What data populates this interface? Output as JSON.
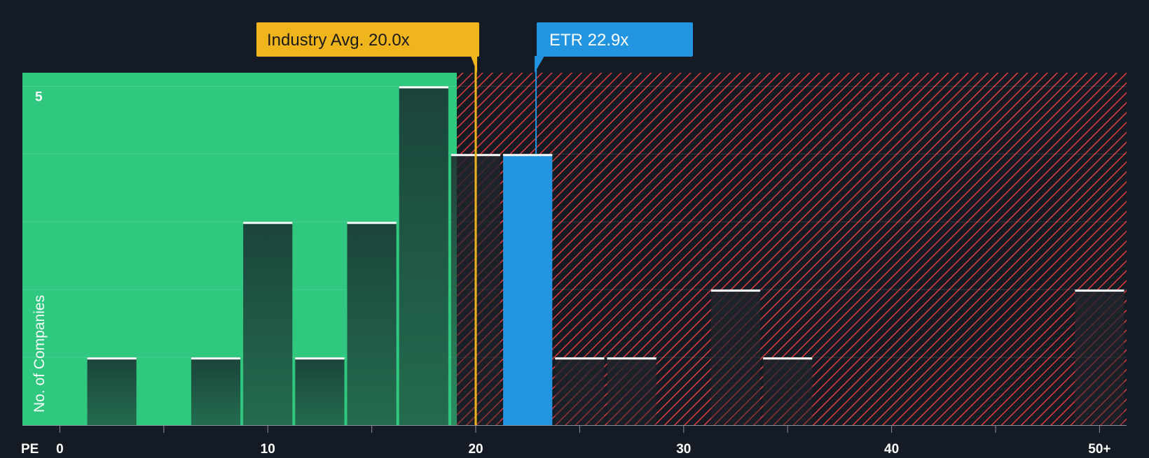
{
  "colors": {
    "background": "#151b24",
    "undervalued_zone": "#2fc87e",
    "overvalued_hatch": "#e03c3c",
    "bar_dark": "#1e4a3f",
    "bar_highlight": "#2394e0",
    "industry_marker": "#f0b41c",
    "cap_line": "#ffffff"
  },
  "labels": {
    "industry": "Industry Avg. 20.0x",
    "company": "ETR 22.9x"
  },
  "chart_data": {
    "type": "bar",
    "title": "",
    "xlabel": "PE",
    "ylabel": "No. of Companies",
    "x_ticks": [
      {
        "value": 0,
        "label": "0"
      },
      {
        "value": 10,
        "label": "10"
      },
      {
        "value": 20,
        "label": "20"
      },
      {
        "value": 30,
        "label": "30"
      },
      {
        "value": 40,
        "label": "40"
      },
      {
        "value": 50,
        "label": "50+"
      }
    ],
    "y_ticks": [
      {
        "value": 5,
        "label": "5"
      }
    ],
    "xlim": [
      -1.8,
      51.3
    ],
    "ylim": [
      0,
      5.2
    ],
    "bin_width": 2.5,
    "industry_avg": 20.0,
    "company_value": 22.9,
    "bars": [
      {
        "x": 2.5,
        "value": 1
      },
      {
        "x": 7.5,
        "value": 1
      },
      {
        "x": 10.0,
        "value": 3
      },
      {
        "x": 12.5,
        "value": 1
      },
      {
        "x": 15.0,
        "value": 3
      },
      {
        "x": 17.5,
        "value": 5
      },
      {
        "x": 20.0,
        "value": 4
      },
      {
        "x": 22.5,
        "value": 4,
        "highlight": true
      },
      {
        "x": 25.0,
        "value": 1
      },
      {
        "x": 27.5,
        "value": 1
      },
      {
        "x": 32.5,
        "value": 2
      },
      {
        "x": 35.0,
        "value": 1
      },
      {
        "x": 50.0,
        "value": 2
      }
    ]
  }
}
